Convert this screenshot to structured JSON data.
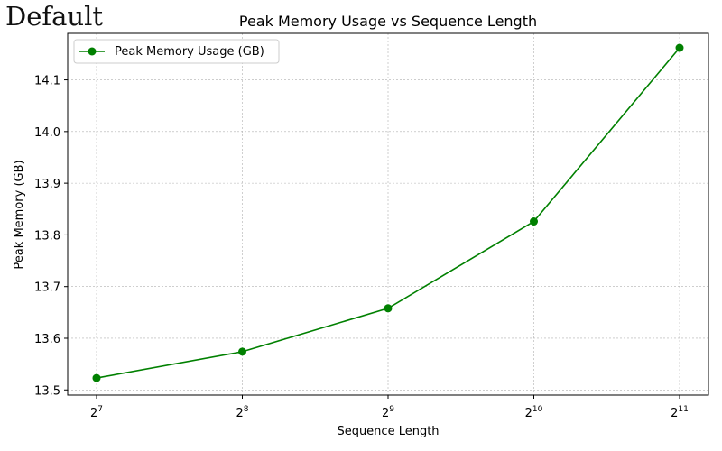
{
  "watermark": "Default",
  "colors": {
    "series": "#008000",
    "grid": "#b0b0b0",
    "axis": "#000000"
  },
  "chart_data": {
    "type": "line",
    "title": "Peak Memory Usage vs Sequence Length",
    "xlabel": "Sequence Length",
    "ylabel": "Peak Memory (GB)",
    "xscale": "log2",
    "x": [
      128,
      256,
      512,
      1024,
      2048
    ],
    "x_tick_labels": [
      {
        "base": "2",
        "exp": "7"
      },
      {
        "base": "2",
        "exp": "8"
      },
      {
        "base": "2",
        "exp": "9"
      },
      {
        "base": "2",
        "exp": "10"
      },
      {
        "base": "2",
        "exp": "11"
      }
    ],
    "y_ticks": [
      "13.5",
      "13.6",
      "13.7",
      "13.8",
      "13.9",
      "14.0",
      "14.1"
    ],
    "ylim": [
      13.49,
      14.19
    ],
    "grid": true,
    "legend": "upper-left",
    "series": [
      {
        "name": "Peak Memory Usage (GB)",
        "marker": "circle",
        "values": [
          13.523,
          13.574,
          13.658,
          13.826,
          14.162
        ]
      }
    ]
  }
}
